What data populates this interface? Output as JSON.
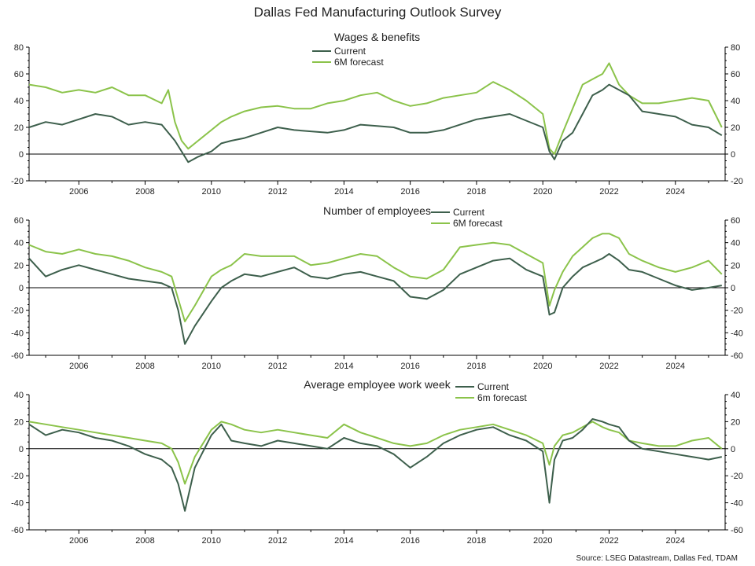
{
  "figure": {
    "title": "Dallas Fed Manufacturing Outlook Survey",
    "source": "Source: LSEG Datastream, Dallas Fed, TDAM"
  },
  "colors": {
    "current": "#3d5f4c",
    "forecast": "#8bc34a",
    "zero_line": "#000000",
    "axis": "#000000"
  },
  "chart_data": [
    {
      "type": "line",
      "title": "Wages & benefits",
      "xlabel": "",
      "ylabel": "",
      "ylim": [
        -20,
        80
      ],
      "yticks": [
        -20,
        0,
        20,
        40,
        60,
        80
      ],
      "xlim": [
        2004.5,
        2025.5
      ],
      "xticks": [
        2006,
        2008,
        2010,
        2012,
        2014,
        2016,
        2018,
        2020,
        2022,
        2024
      ],
      "grid": false,
      "legend_position": "top-center",
      "series": [
        {
          "name": "Current",
          "color": "#3d5f4c",
          "x": [
            2004.5,
            2005,
            2005.5,
            2006,
            2006.5,
            2007,
            2007.5,
            2008,
            2008.5,
            2008.9,
            2009.1,
            2009.3,
            2009.6,
            2010,
            2010.3,
            2010.6,
            2011,
            2011.5,
            2012,
            2012.5,
            2013,
            2013.5,
            2014,
            2014.5,
            2015,
            2015.5,
            2016,
            2016.5,
            2017,
            2017.5,
            2018,
            2018.5,
            2019,
            2019.5,
            2020,
            2020.2,
            2020.35,
            2020.6,
            2020.9,
            2021.2,
            2021.5,
            2021.8,
            2022,
            2022.3,
            2022.6,
            2023,
            2023.5,
            2024,
            2024.5,
            2025,
            2025.4
          ],
          "y": [
            20,
            24,
            22,
            26,
            30,
            28,
            22,
            24,
            22,
            10,
            2,
            -6,
            -2,
            2,
            8,
            10,
            12,
            16,
            20,
            18,
            17,
            16,
            18,
            22,
            21,
            20,
            16,
            16,
            18,
            22,
            26,
            28,
            30,
            25,
            20,
            2,
            -4,
            10,
            16,
            30,
            44,
            48,
            52,
            48,
            44,
            32,
            30,
            28,
            22,
            20,
            14
          ]
        },
        {
          "name": "6M forecast",
          "color": "#8bc34a",
          "x": [
            2004.5,
            2005,
            2005.5,
            2006,
            2006.5,
            2007,
            2007.5,
            2008,
            2008.5,
            2008.7,
            2008.9,
            2009.1,
            2009.3,
            2009.6,
            2010,
            2010.3,
            2010.6,
            2011,
            2011.5,
            2012,
            2012.5,
            2013,
            2013.5,
            2014,
            2014.5,
            2015,
            2015.5,
            2016,
            2016.5,
            2017,
            2017.5,
            2018,
            2018.5,
            2019,
            2019.5,
            2020,
            2020.2,
            2020.35,
            2020.6,
            2020.9,
            2021.2,
            2021.5,
            2021.8,
            2022,
            2022.3,
            2022.6,
            2023,
            2023.5,
            2024,
            2024.5,
            2025,
            2025.4
          ],
          "y": [
            52,
            50,
            46,
            48,
            46,
            50,
            44,
            44,
            38,
            48,
            24,
            10,
            4,
            10,
            18,
            24,
            28,
            32,
            35,
            36,
            34,
            34,
            38,
            40,
            44,
            46,
            40,
            36,
            38,
            42,
            44,
            46,
            54,
            48,
            40,
            30,
            4,
            0,
            16,
            34,
            52,
            56,
            60,
            68,
            52,
            44,
            38,
            38,
            40,
            42,
            40,
            20
          ]
        }
      ]
    },
    {
      "type": "line",
      "title": "Number of employees",
      "xlabel": "",
      "ylabel": "",
      "ylim": [
        -60,
        60
      ],
      "yticks": [
        -60,
        -40,
        -20,
        0,
        20,
        40,
        60
      ],
      "xlim": [
        2004.5,
        2025.5
      ],
      "xticks": [
        2006,
        2008,
        2010,
        2012,
        2014,
        2016,
        2018,
        2020,
        2022,
        2024
      ],
      "grid": false,
      "legend_position": "top-right",
      "series": [
        {
          "name": "Current",
          "color": "#3d5f4c",
          "x": [
            2004.5,
            2005,
            2005.5,
            2006,
            2006.5,
            2007,
            2007.5,
            2008,
            2008.5,
            2008.8,
            2009,
            2009.2,
            2009.5,
            2010,
            2010.3,
            2010.6,
            2011,
            2011.5,
            2012,
            2012.5,
            2013,
            2013.5,
            2014,
            2014.5,
            2015,
            2015.5,
            2016,
            2016.5,
            2017,
            2017.5,
            2018,
            2018.5,
            2019,
            2019.5,
            2020,
            2020.2,
            2020.35,
            2020.6,
            2020.9,
            2021.2,
            2021.5,
            2021.8,
            2022,
            2022.3,
            2022.6,
            2023,
            2023.5,
            2024,
            2024.5,
            2025,
            2025.4
          ],
          "y": [
            26,
            10,
            16,
            20,
            16,
            12,
            8,
            6,
            4,
            0,
            -20,
            -50,
            -34,
            -12,
            0,
            6,
            12,
            10,
            14,
            18,
            10,
            8,
            12,
            14,
            10,
            6,
            -8,
            -10,
            -2,
            12,
            18,
            24,
            26,
            16,
            10,
            -24,
            -22,
            0,
            10,
            18,
            22,
            26,
            30,
            24,
            16,
            14,
            8,
            2,
            -2,
            0,
            2
          ]
        },
        {
          "name": "6M forecast",
          "color": "#8bc34a",
          "x": [
            2004.5,
            2005,
            2005.5,
            2006,
            2006.5,
            2007,
            2007.5,
            2008,
            2008.5,
            2008.8,
            2009,
            2009.2,
            2009.5,
            2010,
            2010.3,
            2010.6,
            2011,
            2011.5,
            2012,
            2012.5,
            2013,
            2013.5,
            2014,
            2014.5,
            2015,
            2015.5,
            2016,
            2016.5,
            2017,
            2017.5,
            2018,
            2018.5,
            2019,
            2019.5,
            2020,
            2020.2,
            2020.35,
            2020.6,
            2020.9,
            2021.2,
            2021.5,
            2021.8,
            2022,
            2022.3,
            2022.6,
            2023,
            2023.5,
            2024,
            2024.5,
            2025,
            2025.4
          ],
          "y": [
            38,
            32,
            30,
            34,
            30,
            28,
            24,
            18,
            14,
            10,
            -10,
            -30,
            -16,
            10,
            16,
            20,
            30,
            28,
            28,
            28,
            20,
            22,
            26,
            30,
            28,
            18,
            10,
            8,
            16,
            36,
            38,
            40,
            38,
            30,
            22,
            -16,
            -2,
            14,
            28,
            36,
            44,
            48,
            48,
            44,
            30,
            24,
            18,
            14,
            18,
            24,
            12
          ]
        }
      ]
    },
    {
      "type": "line",
      "title": "Average employee work week",
      "xlabel": "",
      "ylabel": "",
      "ylim": [
        -60,
        40
      ],
      "yticks": [
        -60,
        -40,
        -20,
        0,
        20,
        40
      ],
      "xlim": [
        2004.5,
        2025.5
      ],
      "xticks": [
        2006,
        2008,
        2010,
        2012,
        2014,
        2016,
        2018,
        2020,
        2022,
        2024
      ],
      "grid": false,
      "legend_position": "top-right",
      "series": [
        {
          "name": "Current",
          "color": "#3d5f4c",
          "x": [
            2004.5,
            2005,
            2005.5,
            2006,
            2006.5,
            2007,
            2007.5,
            2008,
            2008.5,
            2008.8,
            2009,
            2009.2,
            2009.5,
            2010,
            2010.3,
            2010.6,
            2011,
            2011.5,
            2012,
            2012.5,
            2013,
            2013.5,
            2014,
            2014.5,
            2015,
            2015.5,
            2016,
            2016.5,
            2017,
            2017.5,
            2018,
            2018.5,
            2019,
            2019.5,
            2020,
            2020.2,
            2020.35,
            2020.6,
            2020.9,
            2021.2,
            2021.5,
            2021.8,
            2022,
            2022.3,
            2022.6,
            2023,
            2023.5,
            2024,
            2024.5,
            2025,
            2025.4
          ],
          "y": [
            18,
            10,
            14,
            12,
            8,
            6,
            2,
            -4,
            -8,
            -14,
            -26,
            -46,
            -14,
            10,
            18,
            6,
            4,
            2,
            6,
            4,
            2,
            0,
            8,
            4,
            2,
            -4,
            -14,
            -6,
            4,
            10,
            14,
            16,
            10,
            6,
            -2,
            -40,
            -8,
            6,
            8,
            14,
            22,
            20,
            18,
            16,
            6,
            0,
            -2,
            -4,
            -6,
            -8,
            -6
          ]
        },
        {
          "name": "6m forecast",
          "color": "#8bc34a",
          "x": [
            2004.5,
            2005,
            2005.5,
            2006,
            2006.5,
            2007,
            2007.5,
            2008,
            2008.5,
            2008.8,
            2009,
            2009.2,
            2009.5,
            2010,
            2010.3,
            2010.6,
            2011,
            2011.5,
            2012,
            2012.5,
            2013,
            2013.5,
            2014,
            2014.5,
            2015,
            2015.5,
            2016,
            2016.5,
            2017,
            2017.5,
            2018,
            2018.5,
            2019,
            2019.5,
            2020,
            2020.2,
            2020.35,
            2020.6,
            2020.9,
            2021.2,
            2021.5,
            2021.8,
            2022,
            2022.3,
            2022.6,
            2023,
            2023.5,
            2024,
            2024.5,
            2025,
            2025.4
          ],
          "y": [
            20,
            18,
            16,
            14,
            12,
            10,
            8,
            6,
            4,
            0,
            -10,
            -26,
            -6,
            14,
            20,
            18,
            14,
            12,
            14,
            12,
            10,
            8,
            18,
            12,
            8,
            4,
            2,
            4,
            10,
            14,
            16,
            18,
            14,
            10,
            4,
            -12,
            2,
            10,
            12,
            16,
            20,
            16,
            14,
            12,
            6,
            4,
            2,
            2,
            6,
            8,
            0
          ]
        }
      ]
    }
  ]
}
